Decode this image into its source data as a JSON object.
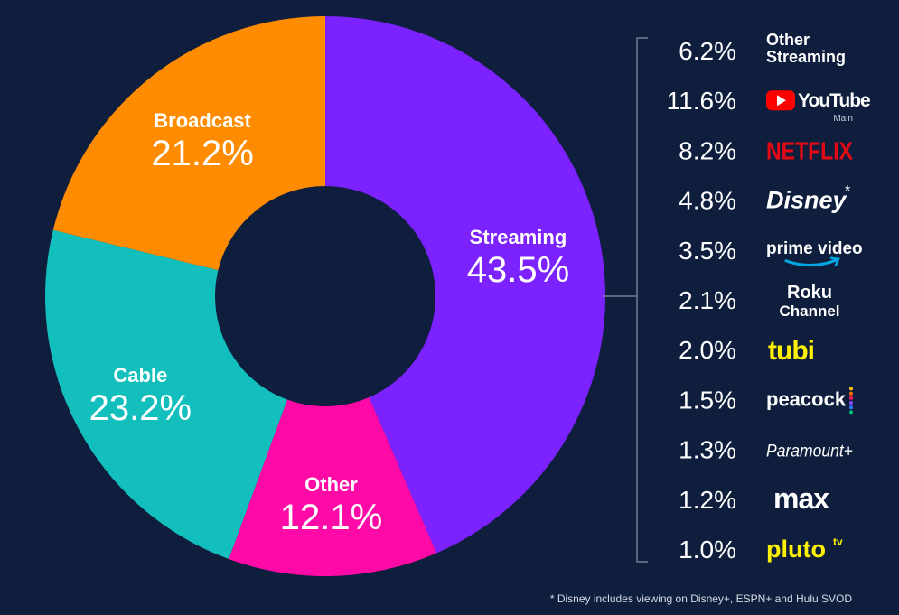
{
  "chart_data": [
    {
      "type": "pie",
      "variant": "donut",
      "slices": [
        {
          "name": "Streaming",
          "value": 43.5,
          "label": "43.5%",
          "color": "#7b22ff"
        },
        {
          "name": "Other",
          "value": 12.1,
          "label": "12.1%",
          "color": "#ff0aa7"
        },
        {
          "name": "Cable",
          "value": 23.2,
          "label": "23.2%",
          "color": "#12bfbd"
        },
        {
          "name": "Broadcast",
          "value": 21.2,
          "label": "21.2%",
          "color": "#ff8c00"
        }
      ]
    },
    {
      "type": "table",
      "rows": [
        {
          "value": 6.2,
          "label": "6.2%",
          "service": "Other Streaming",
          "icon": "other-streaming-text-logo"
        },
        {
          "value": 11.6,
          "label": "11.6%",
          "service": "YouTube",
          "sub": "Main",
          "icon": "youtube-logo"
        },
        {
          "value": 8.2,
          "label": "8.2%",
          "service": "NETFLIX",
          "icon": "netflix-logo"
        },
        {
          "value": 4.8,
          "label": "4.8%",
          "service": "Disney",
          "mark": "*",
          "icon": "disney-logo"
        },
        {
          "value": 3.5,
          "label": "3.5%",
          "service": "prime video",
          "icon": "prime-video-logo"
        },
        {
          "value": 2.1,
          "label": "2.1%",
          "service": "Roku Channel",
          "icon": "roku-channel-logo"
        },
        {
          "value": 2.0,
          "label": "2.0%",
          "service": "tubi",
          "icon": "tubi-logo"
        },
        {
          "value": 1.5,
          "label": "1.5%",
          "service": "peacock",
          "icon": "peacock-logo"
        },
        {
          "value": 1.3,
          "label": "1.3%",
          "service": "Paramount+",
          "icon": "paramount-plus-logo"
        },
        {
          "value": 1.2,
          "label": "1.2%",
          "service": "max",
          "icon": "max-logo"
        },
        {
          "value": 1.0,
          "label": "1.0%",
          "service": "pluto tv",
          "icon": "pluto-tv-logo"
        }
      ]
    }
  ],
  "footnote": "* Disney includes viewing on Disney+, ESPN+ and Hulu SVOD",
  "colors": {
    "background": "#0f1e3d",
    "youtube_red": "#ff0000",
    "netflix_red": "#e50914",
    "tubi_yellow": "#fff200",
    "pluto_yellow": "#fff200",
    "prime_blue": "#00a8e1",
    "bracket": "#8a93a8"
  }
}
